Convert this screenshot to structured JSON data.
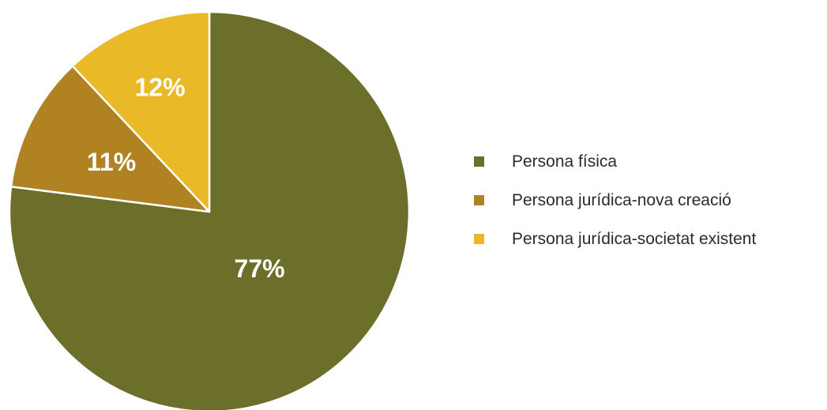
{
  "chart_data": {
    "type": "pie",
    "categories": [
      "Persona física",
      "Persona jurídica-nova creació",
      "Persona jurídica-societat existent"
    ],
    "values": [
      77,
      11,
      12
    ],
    "value_labels": [
      "77%",
      "11%",
      "12%"
    ],
    "colors": [
      "#6b6f29",
      "#b08222",
      "#e9b927"
    ],
    "start_angle": "12 o'clock",
    "direction": "clockwise",
    "legend_position": "right"
  }
}
